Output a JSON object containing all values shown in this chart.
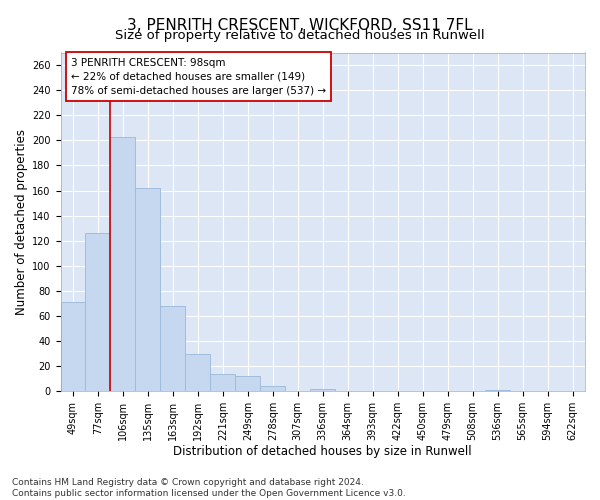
{
  "title_line1": "3, PENRITH CRESCENT, WICKFORD, SS11 7FL",
  "title_line2": "Size of property relative to detached houses in Runwell",
  "xlabel": "Distribution of detached houses by size in Runwell",
  "ylabel": "Number of detached properties",
  "categories": [
    "49sqm",
    "77sqm",
    "106sqm",
    "135sqm",
    "163sqm",
    "192sqm",
    "221sqm",
    "249sqm",
    "278sqm",
    "307sqm",
    "336sqm",
    "364sqm",
    "393sqm",
    "422sqm",
    "450sqm",
    "479sqm",
    "508sqm",
    "536sqm",
    "565sqm",
    "594sqm",
    "622sqm"
  ],
  "values": [
    71,
    126,
    203,
    162,
    68,
    30,
    14,
    12,
    4,
    0,
    2,
    0,
    0,
    0,
    0,
    0,
    0,
    1,
    0,
    0,
    0
  ],
  "bar_color": "#c5d8f0",
  "bar_edge_color": "#9ab8da",
  "background_color": "#dce6f5",
  "grid_color": "#ffffff",
  "annotation_box_text": "3 PENRITH CRESCENT: 98sqm\n← 22% of detached houses are smaller (149)\n78% of semi-detached houses are larger (537) →",
  "vline_x_index": 2,
  "vline_color": "#cc0000",
  "ylim": [
    0,
    270
  ],
  "yticks": [
    0,
    20,
    40,
    60,
    80,
    100,
    120,
    140,
    160,
    180,
    200,
    220,
    240,
    260
  ],
  "footnote": "Contains HM Land Registry data © Crown copyright and database right 2024.\nContains public sector information licensed under the Open Government Licence v3.0.",
  "title_fontsize": 11,
  "subtitle_fontsize": 9.5,
  "xlabel_fontsize": 8.5,
  "ylabel_fontsize": 8.5,
  "tick_fontsize": 7,
  "annot_fontsize": 7.5,
  "footnote_fontsize": 6.5
}
